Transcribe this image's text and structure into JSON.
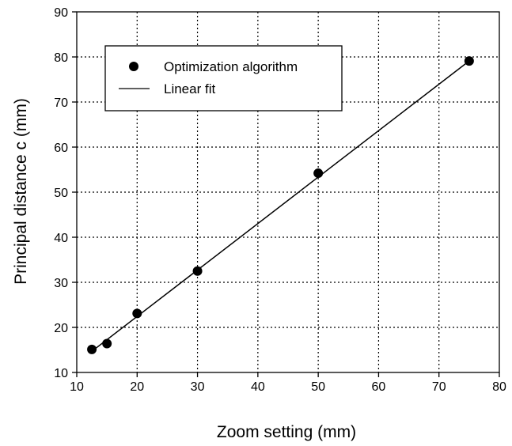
{
  "chart_data": {
    "type": "scatter",
    "title": "",
    "xlabel": "Zoom setting (mm)",
    "ylabel": "Principal distance c (mm)",
    "xlim": [
      10,
      80
    ],
    "ylim": [
      10,
      90
    ],
    "xticks": [
      10,
      20,
      30,
      40,
      50,
      60,
      70,
      80
    ],
    "yticks": [
      10,
      20,
      30,
      40,
      50,
      60,
      70,
      80,
      90
    ],
    "grid": true,
    "grid_style": "dotted",
    "legend_position": "top-left",
    "series": [
      {
        "name": "Optimization algorithm",
        "kind": "scatter",
        "marker": "filled-circle",
        "color": "#000000",
        "x": [
          12.5,
          15,
          20,
          30,
          50,
          75
        ],
        "y": [
          15.1,
          16.4,
          23.1,
          32.5,
          54.2,
          79.1
        ]
      },
      {
        "name": "Linear fit",
        "kind": "line",
        "color": "#000000",
        "x": [
          12.5,
          75
        ],
        "y": [
          14.7,
          79.1
        ]
      }
    ]
  }
}
